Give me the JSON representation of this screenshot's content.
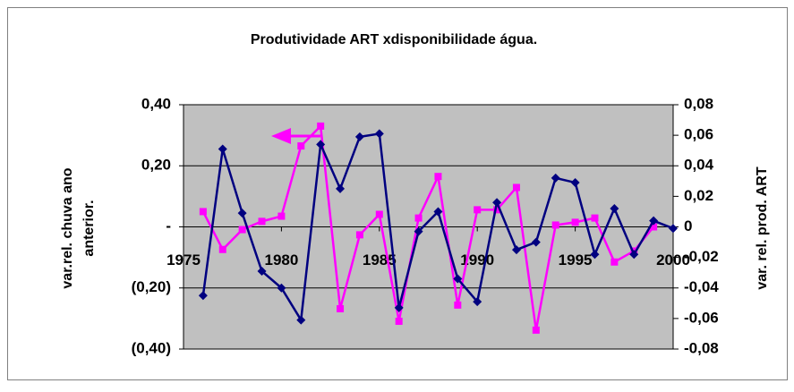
{
  "chart_data": {
    "type": "line",
    "title": "Produtividade ART xdisponibilidade água.",
    "ylabel": [
      "var.rel. chuva ano",
      "anterior."
    ],
    "y2label": "var. rel. prod. ART",
    "x": [
      1976,
      1977,
      1978,
      1979,
      1980,
      1981,
      1982,
      1983,
      1984,
      1985,
      1986,
      1987,
      1988,
      1989,
      1990,
      1991,
      1992,
      1993,
      1994,
      1995,
      1996,
      1997,
      1998,
      1999,
      2000
    ],
    "xlim": [
      1975,
      2000
    ],
    "xticks": [
      1975,
      1980,
      1985,
      1990,
      1995,
      2000
    ],
    "ylim": [
      -0.4,
      0.4
    ],
    "yticks": [
      {
        "value": -0.4,
        "label": "(0,40)"
      },
      {
        "value": -0.2,
        "label": "(0,20)"
      },
      {
        "value": 0,
        "label": "-"
      },
      {
        "value": 0.2,
        "label": "0,20"
      },
      {
        "value": 0.4,
        "label": "0,40"
      }
    ],
    "y2lim": [
      -0.08,
      0.08
    ],
    "y2ticks": [
      {
        "value": -0.08,
        "label": "-0,08"
      },
      {
        "value": -0.06,
        "label": "-0,06"
      },
      {
        "value": -0.04,
        "label": "-0,04"
      },
      {
        "value": -0.02,
        "label": "-0,02"
      },
      0,
      {
        "value": 0.02,
        "label": "0,02"
      },
      {
        "value": 0.04,
        "label": "0,04"
      },
      {
        "value": 0.06,
        "label": "0,06"
      },
      {
        "value": 0.08,
        "label": "0,08"
      }
    ],
    "grid": true,
    "series": [
      {
        "color": "#ff00ff",
        "marker": "square",
        "axis": "y",
        "values": [
          0.05,
          -0.074,
          -0.009,
          0.018,
          0.035,
          0.265,
          0.33,
          -0.268,
          -0.026,
          0.041,
          -0.309,
          0.029,
          0.165,
          -0.256,
          0.056,
          0.056,
          0.129,
          -0.338,
          0.006,
          0.015,
          0.029,
          -0.115,
          -0.079,
          0,
          null
        ]
      },
      {
        "color": "#000080",
        "marker": "diamond",
        "axis": "y2",
        "values": [
          -0.045,
          0.051,
          0.009,
          -0.029,
          -0.04,
          -0.061,
          0.054,
          0.025,
          0.059,
          0.061,
          -0.053,
          -0.003,
          0.01,
          -0.034,
          -0.049,
          0.016,
          -0.015,
          -0.01,
          0.032,
          0.029,
          -0.018,
          0.012,
          -0.018,
          0.004,
          -0.001
        ]
      }
    ]
  }
}
